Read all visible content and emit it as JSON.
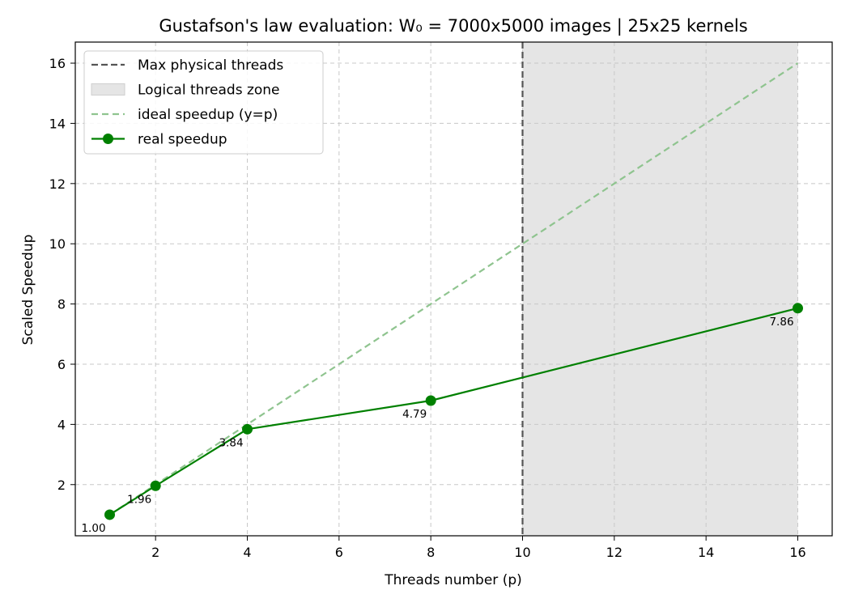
{
  "chart_data": {
    "type": "line",
    "title": "Gustafson's law evaluation: W₀ = 7000x5000 images | 25x25 kernels",
    "xlabel": "Threads number (p)",
    "ylabel": "Scaled Speedup",
    "xlim": [
      0.25,
      16.75
    ],
    "ylim": [
      0.3,
      16.7
    ],
    "xticks": [
      2,
      4,
      6,
      8,
      10,
      12,
      14,
      16
    ],
    "yticks": [
      2,
      4,
      6,
      8,
      10,
      12,
      14,
      16
    ],
    "grid": true,
    "legend_position": "top-left",
    "physical_threads_max": 10,
    "logical_zone": [
      10,
      16
    ],
    "series": [
      {
        "name": "ideal speedup (y=p)",
        "style": "dashed",
        "color": "#8fc48f",
        "x": [
          1,
          16
        ],
        "y": [
          1,
          16
        ]
      },
      {
        "name": "real speedup",
        "style": "solid-marker",
        "color": "#008000",
        "x": [
          1,
          2,
          4,
          8,
          16
        ],
        "y": [
          1.0,
          1.96,
          3.84,
          4.79,
          7.86
        ],
        "labels": [
          "1.00",
          "1.96",
          "3.84",
          "4.79",
          "7.86"
        ]
      }
    ],
    "legend": [
      {
        "label": "Max physical threads",
        "kind": "vline",
        "color": "#555555"
      },
      {
        "label": "Logical threads zone",
        "kind": "patch",
        "color": "#e5e5e5"
      },
      {
        "label": "ideal speedup (y=p)",
        "kind": "dashed",
        "color": "#8fc48f"
      },
      {
        "label": "real speedup",
        "kind": "marker-line",
        "color": "#008000"
      }
    ]
  }
}
